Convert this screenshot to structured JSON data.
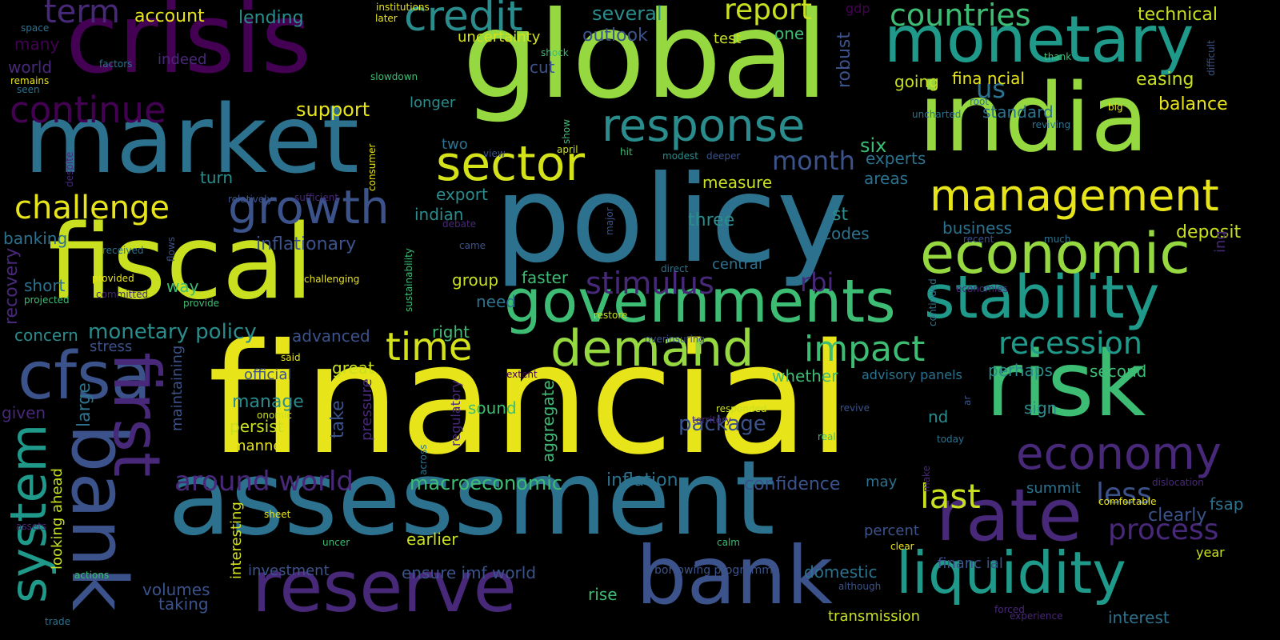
{
  "background": "#000000",
  "palette": {
    "yellow": "#e7e419",
    "lime": "#95d840",
    "green": "#3dbc74",
    "teal": "#1f9a8a",
    "blue": "#2c728e",
    "indigo": "#3b528b",
    "purple": "#482878",
    "violet": "#440154"
  },
  "words": [
    {
      "text": "financial",
      "color": "#e7e419",
      "rotation": 0
    },
    {
      "text": "policy",
      "color": "#2c728e",
      "rotation": 0
    },
    {
      "text": "global",
      "color": "#95d840",
      "rotation": 0
    },
    {
      "text": "crisis",
      "color": "#440154",
      "rotation": 0
    },
    {
      "text": "market",
      "color": "#2c728e",
      "rotation": 0
    },
    {
      "text": "assessment",
      "color": "#2c728e",
      "rotation": 0
    },
    {
      "text": "fiscal",
      "color": "#c8e020",
      "rotation": 0
    },
    {
      "text": "india",
      "color": "#95d840",
      "rotation": 0
    },
    {
      "text": "risk",
      "color": "#3dbc74",
      "rotation": 0
    },
    {
      "text": "monetary",
      "color": "#1f9a8a",
      "rotation": 0
    },
    {
      "text": "bank",
      "color": "#3b528b",
      "rotation": 0
    },
    {
      "text": "reserve",
      "color": "#482878",
      "rotation": 0
    },
    {
      "text": "governments",
      "color": "#3dbc74",
      "rotation": 0
    },
    {
      "text": "stability",
      "color": "#1f9a8a",
      "rotation": 0
    },
    {
      "text": "economic",
      "color": "#95d840",
      "rotation": 0
    },
    {
      "text": "rate",
      "color": "#482878",
      "rotation": 0
    },
    {
      "text": "liquidity",
      "color": "#1f9a8a",
      "rotation": 0
    },
    {
      "text": "cfsa",
      "color": "#3b528b",
      "rotation": 0
    },
    {
      "text": "bank",
      "color": "#3b528b",
      "rotation": 90
    },
    {
      "text": "first",
      "color": "#482878",
      "rotation": 90
    },
    {
      "text": "system",
      "color": "#1f9a8a",
      "rotation": 270
    },
    {
      "text": "demand",
      "color": "#95d840",
      "rotation": 0
    },
    {
      "text": "growth",
      "color": "#3b528b",
      "rotation": 0
    },
    {
      "text": "management",
      "color": "#e7e419",
      "rotation": 0
    },
    {
      "text": "response",
      "color": "#2a8c8c",
      "rotation": 0
    },
    {
      "text": "sector",
      "color": "#d4e21a",
      "rotation": 0
    },
    {
      "text": "economy",
      "color": "#482878",
      "rotation": 0
    },
    {
      "text": "credit",
      "color": "#2a8c8c",
      "rotation": 0
    },
    {
      "text": "time",
      "color": "#d4e21a",
      "rotation": 0
    },
    {
      "text": "impact",
      "color": "#3dbc74",
      "rotation": 0
    },
    {
      "text": "continue",
      "color": "#440154",
      "rotation": 0
    },
    {
      "text": "term",
      "color": "#482878",
      "rotation": 0
    },
    {
      "text": "challenge",
      "color": "#e7e419",
      "rotation": 0
    },
    {
      "text": "countries",
      "color": "#3dbc74",
      "rotation": 0
    },
    {
      "text": "report",
      "color": "#c8e020",
      "rotation": 0
    },
    {
      "text": "last",
      "color": "#c8e020",
      "rotation": 0
    },
    {
      "text": "recession",
      "color": "#1f9a8a",
      "rotation": 0
    },
    {
      "text": "process",
      "color": "#482878",
      "rotation": 0
    },
    {
      "text": "less",
      "color": "#3b528b",
      "rotation": 0
    },
    {
      "text": "stimulus",
      "color": "#482878",
      "rotation": 0
    },
    {
      "text": "rbi",
      "color": "#482878",
      "rotation": 0
    },
    {
      "text": "around world",
      "color": "#482878",
      "rotation": 0
    },
    {
      "text": "month",
      "color": "#3b528b",
      "rotation": 0
    },
    {
      "text": "us",
      "color": "#2c728e",
      "rotation": 0
    },
    {
      "text": "package",
      "color": "#3b528b",
      "rotation": 0
    },
    {
      "text": "monetary policy",
      "color": "#2a8c8c",
      "rotation": 0
    },
    {
      "text": "inflationary",
      "color": "#3b528b",
      "rotation": 0
    },
    {
      "text": "macroeconomic",
      "color": "#3dbc74",
      "rotation": 0
    },
    {
      "text": "inflation",
      "color": "#2c728e",
      "rotation": 0
    },
    {
      "text": "confidence",
      "color": "#3b528b",
      "rotation": 0
    },
    {
      "text": "ensure imf world",
      "color": "#3b528b",
      "rotation": 0
    },
    {
      "text": "domestic",
      "color": "#2c728e",
      "rotation": 0
    },
    {
      "text": "deposit",
      "color": "#c8e020",
      "rotation": 0
    },
    {
      "text": "business",
      "color": "#2c728e",
      "rotation": 0
    },
    {
      "text": "technical",
      "color": "#c8e020",
      "rotation": 0
    },
    {
      "text": "easing",
      "color": "#c8e020",
      "rotation": 0
    },
    {
      "text": "clearly",
      "color": "#3b528b",
      "rotation": 0
    },
    {
      "text": "balance",
      "color": "#e7e419",
      "rotation": 0
    },
    {
      "text": "fsap",
      "color": "#2c728e",
      "rotation": 0
    },
    {
      "text": "interest",
      "color": "#2c728e",
      "rotation": 0
    },
    {
      "text": "transmission",
      "color": "#c8e020",
      "rotation": 0
    },
    {
      "text": "several",
      "color": "#2a8c8c",
      "rotation": 0
    },
    {
      "text": "uncertainty",
      "color": "#d4e21a",
      "rotation": 0
    },
    {
      "text": "outlook",
      "color": "#3b528b",
      "rotation": 0
    },
    {
      "text": "support",
      "color": "#e7e419",
      "rotation": 0
    },
    {
      "text": "longer",
      "color": "#2a8c8c",
      "rotation": 0
    },
    {
      "text": "two",
      "color": "#2c728e",
      "rotation": 0
    },
    {
      "text": "six",
      "color": "#3dbc74",
      "rotation": 0
    },
    {
      "text": "experts",
      "color": "#2c728e",
      "rotation": 0
    },
    {
      "text": "areas",
      "color": "#2c728e",
      "rotation": 0
    },
    {
      "text": "measure",
      "color": "#c8e020",
      "rotation": 0
    },
    {
      "text": "three",
      "color": "#2a8c8c",
      "rotation": 0
    },
    {
      "text": "export",
      "color": "#2a8c8c",
      "rotation": 0
    },
    {
      "text": "indian",
      "color": "#2a8c8c",
      "rotation": 0
    },
    {
      "text": "st",
      "color": "#2a8c8c",
      "rotation": 0
    },
    {
      "text": "codes",
      "color": "#2c728e",
      "rotation": 0
    },
    {
      "text": "central",
      "color": "#2c728e",
      "rotation": 0
    },
    {
      "text": "faster",
      "color": "#3dbc74",
      "rotation": 0
    },
    {
      "text": "group",
      "color": "#c8e020",
      "rotation": 0
    },
    {
      "text": "need",
      "color": "#2c728e",
      "rotation": 0
    },
    {
      "text": "right",
      "color": "#3dbc74",
      "rotation": 0
    },
    {
      "text": "great",
      "color": "#c8e020",
      "rotation": 0
    },
    {
      "text": "whether",
      "color": "#3dbc74",
      "rotation": 0
    },
    {
      "text": "advisory panels",
      "color": "#2c728e",
      "rotation": 0
    },
    {
      "text": "perhaps",
      "color": "#2a8c8c",
      "rotation": 0
    },
    {
      "text": "second",
      "color": "#3dbc74",
      "rotation": 0
    },
    {
      "text": "sign",
      "color": "#2a8c8c",
      "rotation": 0
    },
    {
      "text": "nd",
      "color": "#2a8c8c",
      "rotation": 0
    },
    {
      "text": "may",
      "color": "#2c728e",
      "rotation": 0
    },
    {
      "text": "summit",
      "color": "#2c728e",
      "rotation": 0
    },
    {
      "text": "percent",
      "color": "#3b528b",
      "rotation": 0
    },
    {
      "text": "year",
      "color": "#c8e020",
      "rotation": 0
    },
    {
      "text": "financ ial",
      "color": "#3b528b",
      "rotation": 0
    },
    {
      "text": "fina ncial",
      "color": "#e7e419",
      "rotation": 0
    },
    {
      "text": "going",
      "color": "#c8e020",
      "rotation": 0
    },
    {
      "text": "one",
      "color": "#3dbc74",
      "rotation": 0
    },
    {
      "text": "test",
      "color": "#c8e020",
      "rotation": 0
    },
    {
      "text": "gdp",
      "color": "#440154",
      "rotation": 0
    },
    {
      "text": "standard",
      "color": "#2c728e",
      "rotation": 0
    },
    {
      "text": "account",
      "color": "#e7e419",
      "rotation": 0
    },
    {
      "text": "lending",
      "color": "#2a8c8c",
      "rotation": 0
    },
    {
      "text": "many",
      "color": "#440154",
      "rotation": 0
    },
    {
      "text": "world",
      "color": "#482878",
      "rotation": 0
    },
    {
      "text": "indeed",
      "color": "#482878",
      "rotation": 0
    },
    {
      "text": "cut",
      "color": "#3b528b",
      "rotation": 0
    },
    {
      "text": "turn",
      "color": "#2a8c8c",
      "rotation": 0
    },
    {
      "text": "banking",
      "color": "#2c728e",
      "rotation": 0
    },
    {
      "text": "short",
      "color": "#2c728e",
      "rotation": 0
    },
    {
      "text": "way",
      "color": "#3dbc74",
      "rotation": 0
    },
    {
      "text": "concern",
      "color": "#2a8c8c",
      "rotation": 0
    },
    {
      "text": "stress",
      "color": "#3b528b",
      "rotation": 0
    },
    {
      "text": "given",
      "color": "#482878",
      "rotation": 0
    },
    {
      "text": "official",
      "color": "#3b528b",
      "rotation": 0
    },
    {
      "text": "manage",
      "color": "#2a8c8c",
      "rotation": 0
    },
    {
      "text": "persist",
      "color": "#c8e020",
      "rotation": 0
    },
    {
      "text": "manner",
      "color": "#e7e419",
      "rotation": 0
    },
    {
      "text": "sound",
      "color": "#3dbc74",
      "rotation": 0
    },
    {
      "text": "advanced",
      "color": "#3b528b",
      "rotation": 0
    },
    {
      "text": "earlier",
      "color": "#c8e020",
      "rotation": 0
    },
    {
      "text": "investment",
      "color": "#3b528b",
      "rotation": 0
    },
    {
      "text": "volumes",
      "color": "#3b528b",
      "rotation": 0
    },
    {
      "text": "taking",
      "color": "#3b528b",
      "rotation": 0
    },
    {
      "text": "rise",
      "color": "#3dbc74",
      "rotation": 0
    },
    {
      "text": "borrowing programme",
      "color": "#3b528b",
      "rotation": 0
    },
    {
      "text": "recovery",
      "color": "#482878",
      "rotation": 270
    },
    {
      "text": "large",
      "color": "#2c728e",
      "rotation": 270
    },
    {
      "text": "maintaining",
      "color": "#3b528b",
      "rotation": 270
    },
    {
      "text": "looking ahead",
      "color": "#c8e020",
      "rotation": 270
    },
    {
      "text": "interesting",
      "color": "#d4e21a",
      "rotation": 270
    },
    {
      "text": "take",
      "color": "#3b528b",
      "rotation": 270
    },
    {
      "text": "pressure",
      "color": "#482878",
      "rotation": 270
    },
    {
      "text": "regulatory",
      "color": "#482878",
      "rotation": 270
    },
    {
      "text": "aggregate",
      "color": "#3dbc74",
      "rotation": 270
    },
    {
      "text": "robust",
      "color": "#3b528b",
      "rotation": 270
    },
    {
      "text": "ing",
      "color": "#482878",
      "rotation": 270
    },
    {
      "text": "institutions",
      "color": "#e7e419",
      "rotation": 0
    },
    {
      "text": "later",
      "color": "#e7e419",
      "rotation": 0
    },
    {
      "text": "shock",
      "color": "#3dbc74",
      "rotation": 0
    },
    {
      "text": "slowdown",
      "color": "#3dbc74",
      "rotation": 0
    },
    {
      "text": "space",
      "color": "#2c728e",
      "rotation": 0
    },
    {
      "text": "factors",
      "color": "#2c728e",
      "rotation": 0
    },
    {
      "text": "remains",
      "color": "#e7e419",
      "rotation": 0
    },
    {
      "text": "seen",
      "color": "#2c728e",
      "rotation": 0
    },
    {
      "text": "thank",
      "color": "#3dbc74",
      "rotation": 0
    },
    {
      "text": "difficult",
      "color": "#3b528b",
      "rotation": 270
    },
    {
      "text": "root",
      "color": "#2c728e",
      "rotation": 0
    },
    {
      "text": "big",
      "color": "#e7e419",
      "rotation": 0
    },
    {
      "text": "uncharted",
      "color": "#2c728e",
      "rotation": 0
    },
    {
      "text": "reviving",
      "color": "#2c728e",
      "rotation": 0
    },
    {
      "text": "show",
      "color": "#3dbc74",
      "rotation": 270
    },
    {
      "text": "view",
      "color": "#3b528b",
      "rotation": 0
    },
    {
      "text": "april",
      "color": "#c8e020",
      "rotation": 0
    },
    {
      "text": "hit",
      "color": "#3dbc74",
      "rotation": 0
    },
    {
      "text": "modest",
      "color": "#2a8c8c",
      "rotation": 0
    },
    {
      "text": "deeper",
      "color": "#3b528b",
      "rotation": 0
    },
    {
      "text": "despite",
      "color": "#482878",
      "rotation": 270
    },
    {
      "text": "consumer",
      "color": "#e7e419",
      "rotation": 270
    },
    {
      "text": "relatively",
      "color": "#3b528b",
      "rotation": 0
    },
    {
      "text": "sufficient",
      "color": "#482878",
      "rotation": 0
    },
    {
      "text": "major",
      "color": "#3b528b",
      "rotation": 270
    },
    {
      "text": "debate",
      "color": "#482878",
      "rotation": 0
    },
    {
      "text": "flows",
      "color": "#3b528b",
      "rotation": 270
    },
    {
      "text": "received",
      "color": "#2c728e",
      "rotation": 0
    },
    {
      "text": "came",
      "color": "#3b528b",
      "rotation": 0
    },
    {
      "text": "recent",
      "color": "#3b528b",
      "rotation": 0
    },
    {
      "text": "much",
      "color": "#2c728e",
      "rotation": 0
    },
    {
      "text": "direct",
      "color": "#2c728e",
      "rotation": 0
    },
    {
      "text": "provided",
      "color": "#e7e419",
      "rotation": 0
    },
    {
      "text": "committed",
      "color": "#482878",
      "rotation": 0
    },
    {
      "text": "challenging",
      "color": "#e7e419",
      "rotation": 0
    },
    {
      "text": "projected",
      "color": "#3dbc74",
      "rotation": 0
    },
    {
      "text": "provide",
      "color": "#3dbc74",
      "rotation": 0
    },
    {
      "text": "sustainability",
      "color": "#3dbc74",
      "rotation": 270
    },
    {
      "text": "continued",
      "color": "#2c728e",
      "rotation": 270
    },
    {
      "text": "economies",
      "color": "#482878",
      "rotation": 0
    },
    {
      "text": "restore",
      "color": "#c8e020",
      "rotation": 0
    },
    {
      "text": "overinsuring",
      "color": "#3b528b",
      "rotation": 0
    },
    {
      "text": "said",
      "color": "#e7e419",
      "rotation": 0
    },
    {
      "text": "extent",
      "color": "#440154",
      "rotation": 0
    },
    {
      "text": "onomic",
      "color": "#c8e020",
      "rotation": 0
    },
    {
      "text": "responded",
      "color": "#c8e020",
      "rotation": 0
    },
    {
      "text": "territory",
      "color": "#482878",
      "rotation": 0
    },
    {
      "text": "revive",
      "color": "#3b528b",
      "rotation": 0
    },
    {
      "text": "ar",
      "color": "#3b528b",
      "rotation": 270
    },
    {
      "text": "real",
      "color": "#3dbc74",
      "rotation": 0
    },
    {
      "text": "today",
      "color": "#2c728e",
      "rotation": 0
    },
    {
      "text": "across",
      "color": "#2c728e",
      "rotation": 270
    },
    {
      "text": "make",
      "color": "#482878",
      "rotation": 270
    },
    {
      "text": "dislocation",
      "color": "#482878",
      "rotation": 0
    },
    {
      "text": "comfortable",
      "color": "#e7e419",
      "rotation": 0
    },
    {
      "text": "sheet",
      "color": "#e7e419",
      "rotation": 0
    },
    {
      "text": "assets",
      "color": "#482878",
      "rotation": 0
    },
    {
      "text": "uncer",
      "color": "#3dbc74",
      "rotation": 0
    },
    {
      "text": "calm",
      "color": "#3dbc74",
      "rotation": 0
    },
    {
      "text": "clear",
      "color": "#e7e419",
      "rotation": 0
    },
    {
      "text": "actions",
      "color": "#3dbc74",
      "rotation": 0
    },
    {
      "text": "although",
      "color": "#3b528b",
      "rotation": 0
    },
    {
      "text": "trade",
      "color": "#2c728e",
      "rotation": 0
    },
    {
      "text": "forced",
      "color": "#482878",
      "rotation": 0
    },
    {
      "text": "experience",
      "color": "#482878",
      "rotation": 0
    }
  ]
}
